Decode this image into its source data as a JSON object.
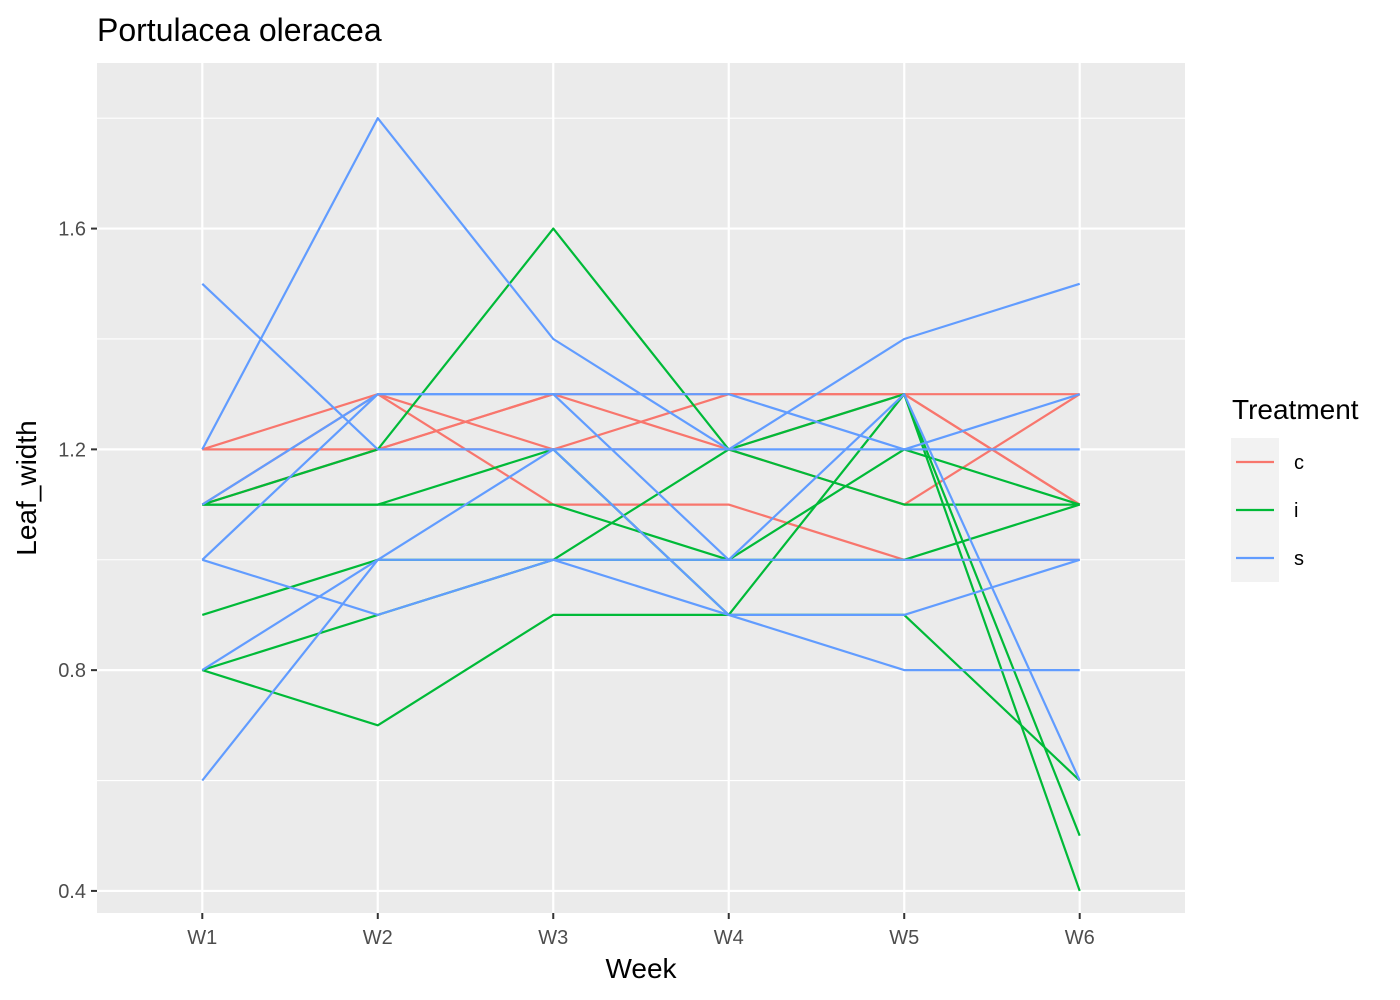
{
  "chart_data": {
    "type": "line",
    "title": "Portulacea oleracea",
    "xlabel": "Week",
    "ylabel": "Leaf_width",
    "categories": [
      "W1",
      "W2",
      "W3",
      "W4",
      "W5",
      "W6"
    ],
    "ylim": [
      0.36,
      1.9
    ],
    "yticks": [
      0.4,
      0.8,
      1.2,
      1.6
    ],
    "ytick_labels": [
      "0.4",
      "0.8",
      "1.2",
      "1.6"
    ],
    "grid": true,
    "legend": {
      "title": "Treatment",
      "placement": "right",
      "entries": [
        {
          "label": "c",
          "color": "#F8766D"
        },
        {
          "label": "i",
          "color": "#00BA38"
        },
        {
          "label": "s",
          "color": "#619CFF"
        }
      ]
    },
    "colors": {
      "panel": "#EBEBEB",
      "grid": "#FFFFFF",
      "c": "#F8766D",
      "i": "#00BA38",
      "s": "#619CFF"
    },
    "series": [
      {
        "treatment": "c",
        "values": [
          1.2,
          1.3,
          1.2,
          1.2,
          1.3,
          1.3
        ]
      },
      {
        "treatment": "c",
        "values": [
          1.2,
          1.2,
          1.3,
          1.2,
          1.1,
          1.3
        ]
      },
      {
        "treatment": "c",
        "values": [
          1.1,
          1.3,
          1.1,
          1.1,
          1.0,
          1.0
        ]
      },
      {
        "treatment": "c",
        "values": [
          1.1,
          1.2,
          1.2,
          1.3,
          1.3,
          1.1
        ]
      },
      {
        "treatment": "c",
        "values": [
          1.1,
          1.2,
          1.3,
          1.3,
          1.3,
          1.1
        ]
      },
      {
        "treatment": "i",
        "values": [
          1.1,
          1.2,
          1.6,
          1.2,
          1.1,
          1.1
        ]
      },
      {
        "treatment": "i",
        "values": [
          1.1,
          1.1,
          1.1,
          1.0,
          1.2,
          1.1
        ]
      },
      {
        "treatment": "i",
        "values": [
          1.1,
          1.1,
          1.2,
          0.9,
          1.3,
          0.4
        ]
      },
      {
        "treatment": "i",
        "values": [
          0.9,
          1.0,
          1.0,
          1.2,
          1.3,
          0.5
        ]
      },
      {
        "treatment": "i",
        "values": [
          0.8,
          0.9,
          1.0,
          1.0,
          1.0,
          1.1
        ]
      },
      {
        "treatment": "i",
        "values": [
          0.8,
          0.7,
          0.9,
          0.9,
          0.9,
          0.6
        ]
      },
      {
        "treatment": "s",
        "values": [
          1.5,
          1.2,
          1.2,
          1.2,
          1.2,
          1.2
        ]
      },
      {
        "treatment": "s",
        "values": [
          1.2,
          1.8,
          1.4,
          1.2,
          1.4,
          1.5
        ]
      },
      {
        "treatment": "s",
        "values": [
          1.1,
          1.3,
          1.3,
          1.3,
          1.2,
          1.3
        ]
      },
      {
        "treatment": "s",
        "values": [
          1.0,
          1.3,
          1.3,
          1.0,
          1.3,
          0.6
        ]
      },
      {
        "treatment": "s",
        "values": [
          1.0,
          0.9,
          1.0,
          1.0,
          1.0,
          1.0
        ]
      },
      {
        "treatment": "s",
        "values": [
          0.8,
          1.0,
          1.0,
          0.9,
          0.9,
          1.0
        ]
      },
      {
        "treatment": "s",
        "values": [
          0.6,
          1.0,
          1.2,
          0.9,
          0.8,
          0.8
        ]
      }
    ]
  }
}
